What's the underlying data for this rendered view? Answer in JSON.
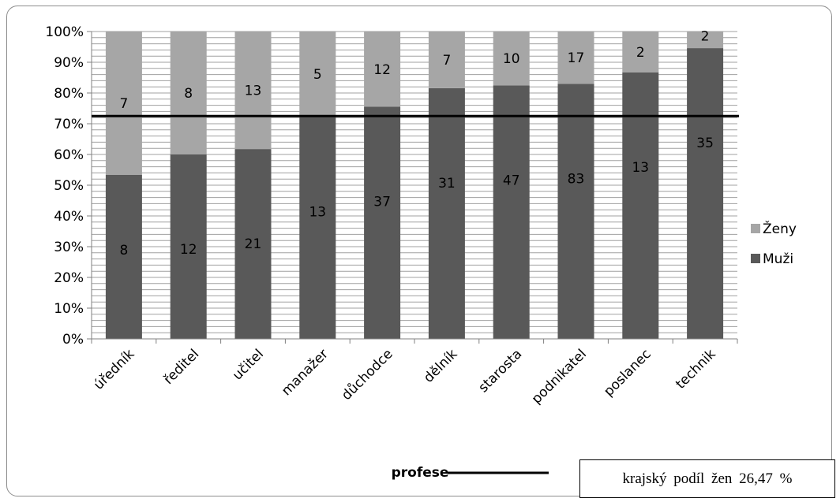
{
  "chart_data": {
    "type": "bar",
    "stacked": "percent",
    "categories": [
      "úředník",
      "ředitel",
      "učitel",
      "manažer",
      "důchodce",
      "dělník",
      "starosta",
      "podnikatel",
      "poslanec",
      "technik"
    ],
    "series": [
      {
        "name": "Muži",
        "values": [
          8,
          12,
          21,
          13,
          37,
          31,
          47,
          83,
          13,
          35
        ],
        "color": "#595959"
      },
      {
        "name": "Ženy",
        "values": [
          7,
          8,
          13,
          5,
          12,
          7,
          10,
          17,
          2,
          2
        ],
        "color": "#a6a6a6"
      }
    ],
    "yticks": [
      "0%",
      "10%",
      "20%",
      "30%",
      "40%",
      "50%",
      "60%",
      "70%",
      "80%",
      "90%",
      "100%"
    ],
    "ylim": [
      0,
      100
    ],
    "xlabel": "profese",
    "reference_line": {
      "value": 72.5,
      "label": "krajský podíl žen 26,47 %"
    },
    "legend_position": "right",
    "grid": true
  }
}
